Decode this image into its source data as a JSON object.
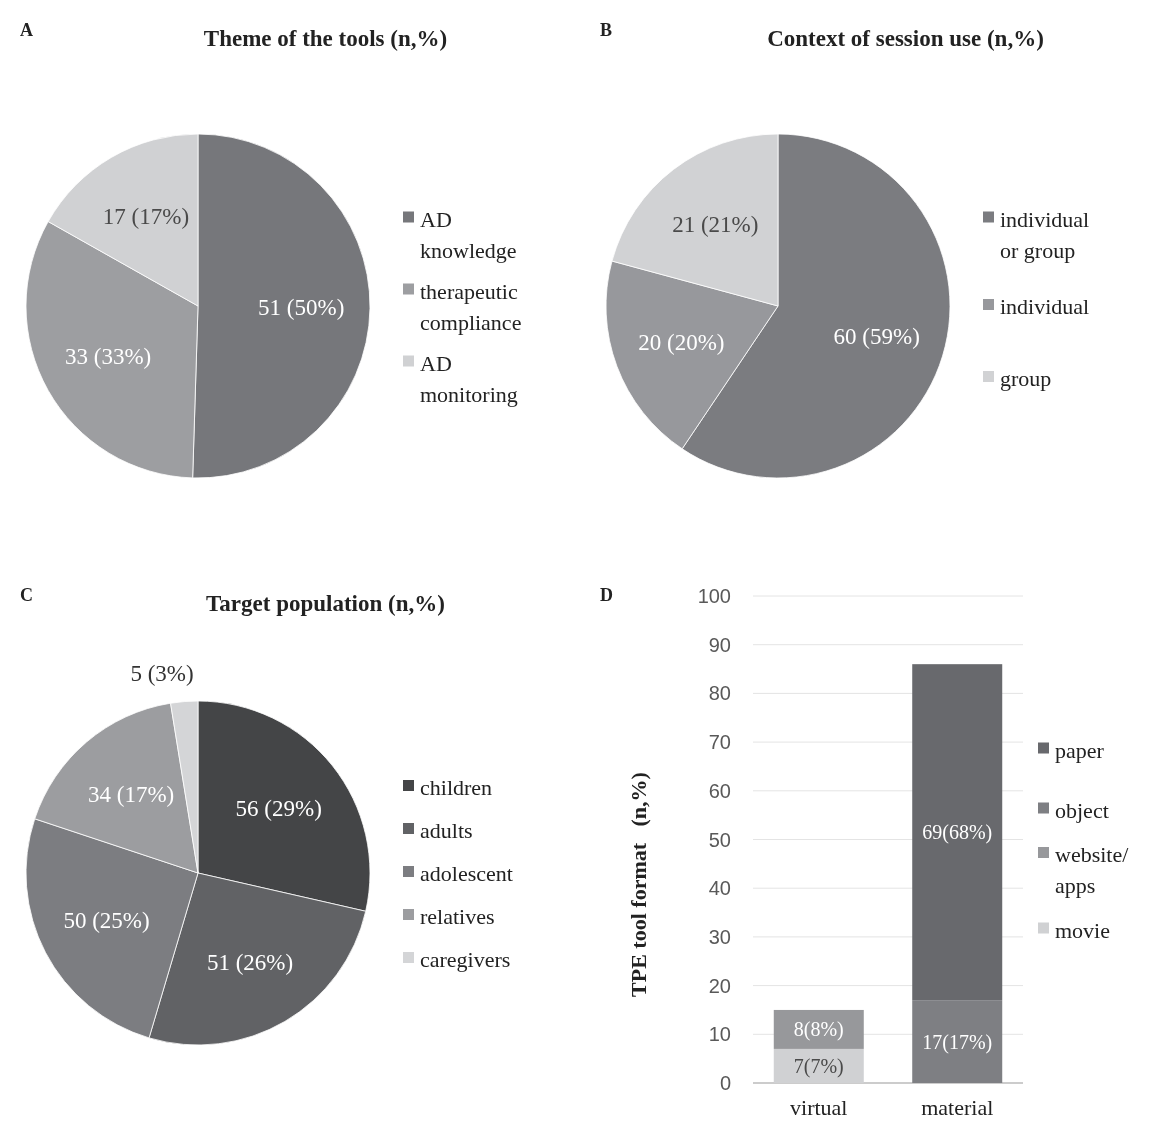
{
  "chart_data": [
    {
      "type": "pie",
      "title": "Theme of the tools (n,%)",
      "annotations": [
        "A"
      ],
      "categories": [
        "AD knowledge",
        "therapeutic compliance",
        "AD monitoring"
      ],
      "values": [
        51,
        33,
        17
      ],
      "colors": [
        "#76777b",
        "#9d9ea1",
        "#d0d1d3"
      ],
      "value_labels": [
        "51 (50%)",
        "33 (33%)",
        "17 (17%)"
      ],
      "legend": "right"
    },
    {
      "type": "pie",
      "title": "Context of session use (n,%)",
      "annotations": [
        "B"
      ],
      "categories": [
        "individual or group",
        "individual",
        "group"
      ],
      "values": [
        60,
        20,
        21
      ],
      "colors": [
        "#7b7c80",
        "#97989c",
        "#d1d2d4"
      ],
      "value_labels": [
        "60 (59%)",
        "20 (20%)",
        "21 (21%)"
      ],
      "legend": "right"
    },
    {
      "type": "pie",
      "title": "Target population (n,%)",
      "annotations": [
        "C"
      ],
      "categories": [
        "children",
        "adults",
        "adolescent",
        "relatives",
        "caregivers"
      ],
      "values": [
        56,
        51,
        50,
        34,
        5
      ],
      "colors": [
        "#444547",
        "#616265",
        "#7c7d81",
        "#9c9da0",
        "#d4d5d7"
      ],
      "value_labels": [
        "56 (29%)",
        "51 (26%)",
        "50 (25%)",
        "34 (17%)",
        "5 (3%)"
      ],
      "legend": "right"
    },
    {
      "type": "bar",
      "annotations": [
        "D"
      ],
      "ylabel": "TPE tool format   (n,%)",
      "categories": [
        "virtual",
        "material"
      ],
      "stacked": true,
      "ylim": [
        0,
        100
      ],
      "yticks": [
        0,
        10,
        20,
        30,
        40,
        50,
        60,
        70,
        80,
        90,
        100
      ],
      "grid": "y",
      "legend": "right",
      "series": [
        {
          "name": "movie",
          "color": "#d0d1d3",
          "values": [
            7,
            null
          ],
          "value_labels": [
            "7(7%)",
            null
          ]
        },
        {
          "name": "website/apps",
          "color": "#97989b",
          "values": [
            8,
            null
          ],
          "value_labels": [
            "8(8%)",
            null
          ]
        },
        {
          "name": "object",
          "color": "#7e7f83",
          "values": [
            null,
            17
          ],
          "value_labels": [
            null,
            "17(17%)"
          ]
        },
        {
          "name": "paper",
          "color": "#68696d",
          "values": [
            null,
            69
          ],
          "value_labels": [
            null,
            "69(68%)"
          ]
        }
      ]
    }
  ]
}
